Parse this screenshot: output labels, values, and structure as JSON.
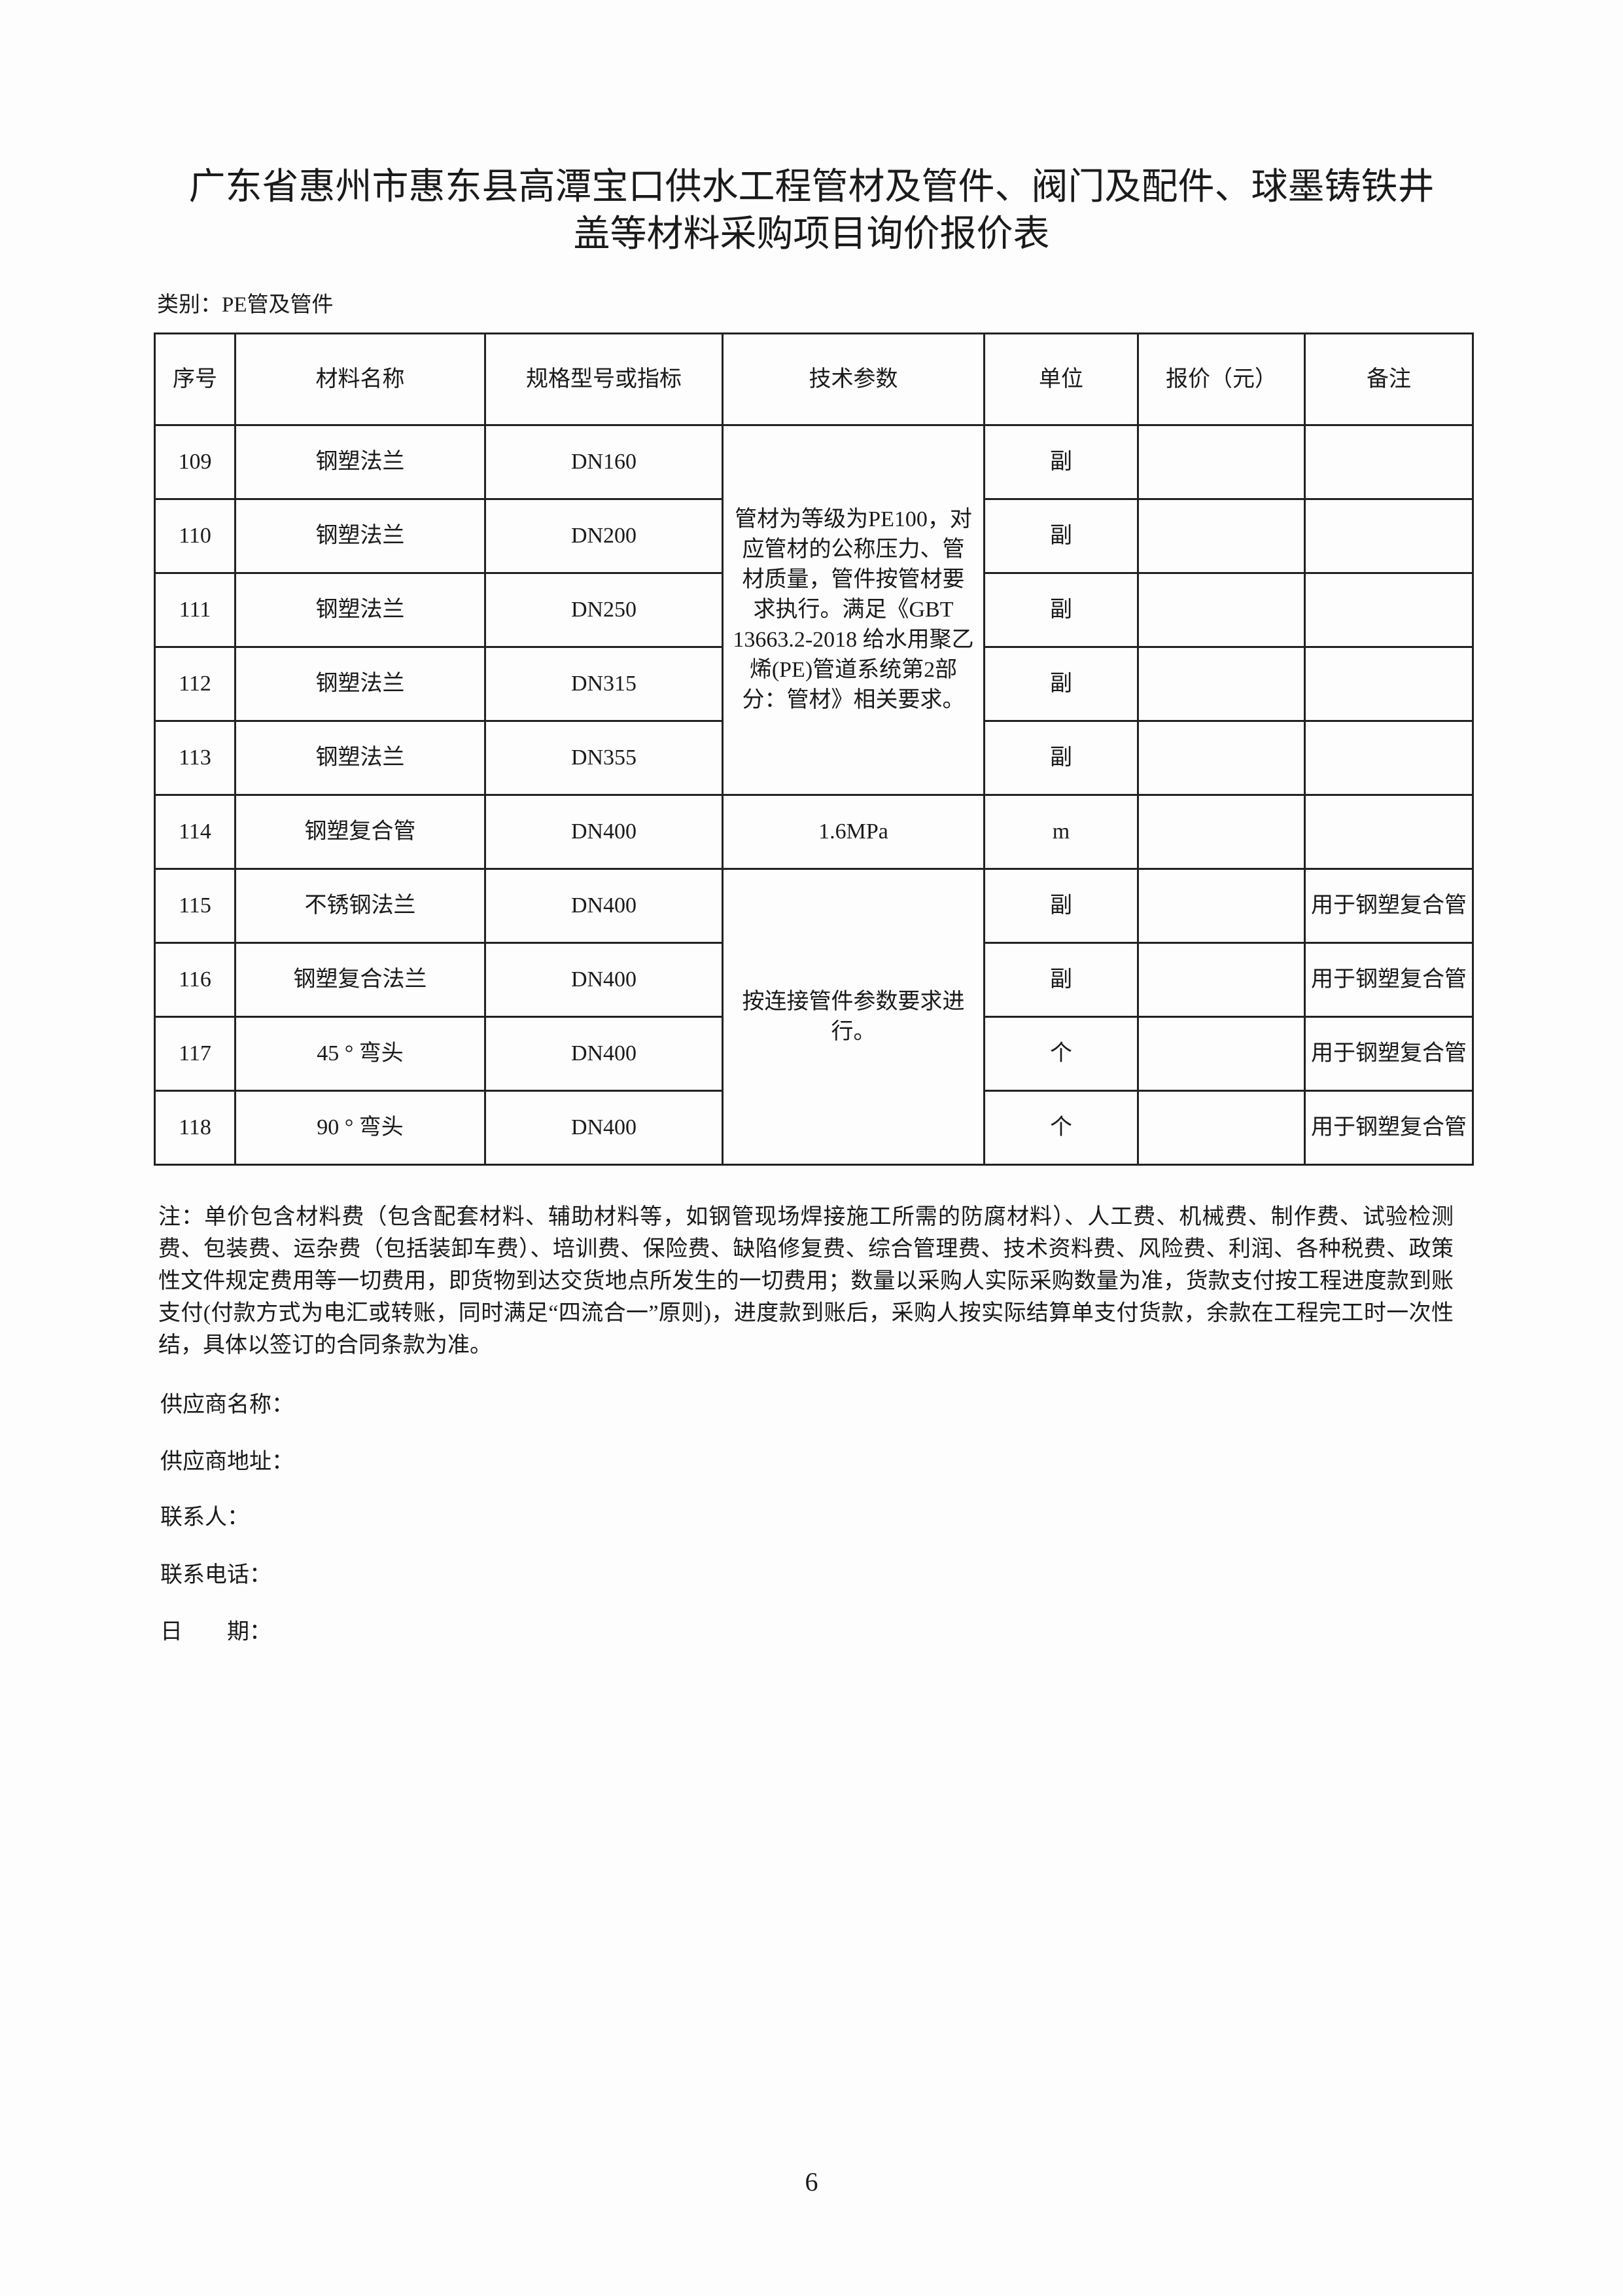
{
  "title_line1": "广东省惠州市惠东县高潭宝口供水工程管材及管件、阀门及配件、球墨铸铁井",
  "title_line2": "盖等材料采购项目询价报价表",
  "category": "类别：PE管及管件",
  "table": {
    "headers": [
      "序号",
      "材料名称",
      "规格型号或指标",
      "技术参数",
      "单位",
      "报价（元）",
      "备注"
    ],
    "rows": [
      {
        "no": "109",
        "name": "钢塑法兰",
        "spec": "DN160",
        "unit": "副",
        "price": "",
        "remark": ""
      },
      {
        "no": "110",
        "name": "钢塑法兰",
        "spec": "DN200",
        "unit": "副",
        "price": "",
        "remark": ""
      },
      {
        "no": "111",
        "name": "钢塑法兰",
        "spec": "DN250",
        "unit": "副",
        "price": "",
        "remark": ""
      },
      {
        "no": "112",
        "name": "钢塑法兰",
        "spec": "DN315",
        "unit": "副",
        "price": "",
        "remark": ""
      },
      {
        "no": "113",
        "name": "钢塑法兰",
        "spec": "DN355",
        "unit": "副",
        "price": "",
        "remark": ""
      },
      {
        "no": "114",
        "name": "钢塑复合管",
        "spec": "DN400",
        "tech": "1.6MPa",
        "unit": "m",
        "price": "",
        "remark": ""
      },
      {
        "no": "115",
        "name": "不锈钢法兰",
        "spec": "DN400",
        "unit": "副",
        "price": "",
        "remark": "用于钢塑复合管"
      },
      {
        "no": "116",
        "name": "钢塑复合法兰",
        "spec": "DN400",
        "unit": "副",
        "price": "",
        "remark": "用于钢塑复合管"
      },
      {
        "no": "117",
        "name": "45 ° 弯头",
        "spec": "DN400",
        "unit": "个",
        "price": "",
        "remark": "用于钢塑复合管"
      },
      {
        "no": "118",
        "name": "90 ° 弯头",
        "spec": "DN400",
        "unit": "个",
        "price": "",
        "remark": "用于钢塑复合管"
      }
    ],
    "tech_group1": "管材为等级为PE100，对应管材的公称压力、管材质量，管件按管材要求执行。满足《GBT 13663.2-2018 给水用聚乙烯(PE)管道系统第2部分：管材》相关要求。",
    "tech_group2": "按连接管件参数要求进行。"
  },
  "notes": "注：单价包含材料费（包含配套材料、辅助材料等，如钢管现场焊接施工所需的防腐材料）、人工费、机械费、制作费、试验检测费、包装费、运杂费（包括装卸车费）、培训费、保险费、缺陷修复费、综合管理费、技术资料费、风险费、利润、各种税费、政策性文件规定费用等一切费用，即货物到达交货地点所发生的一切费用；数量以采购人实际采购数量为准，货款支付按工程进度款到账支付(付款方式为电汇或转账，同时满足“四流合一”原则)，进度款到账后，采购人按实际结算单支付货款，余款在工程完工时一次性结，具体以签订的合同条款为准。",
  "fields": {
    "supplier_name": "供应商名称：",
    "supplier_address": "供应商地址：",
    "contact": "联系人：",
    "phone": "联系电话：",
    "date": "日　　期："
  },
  "page_number": "6"
}
